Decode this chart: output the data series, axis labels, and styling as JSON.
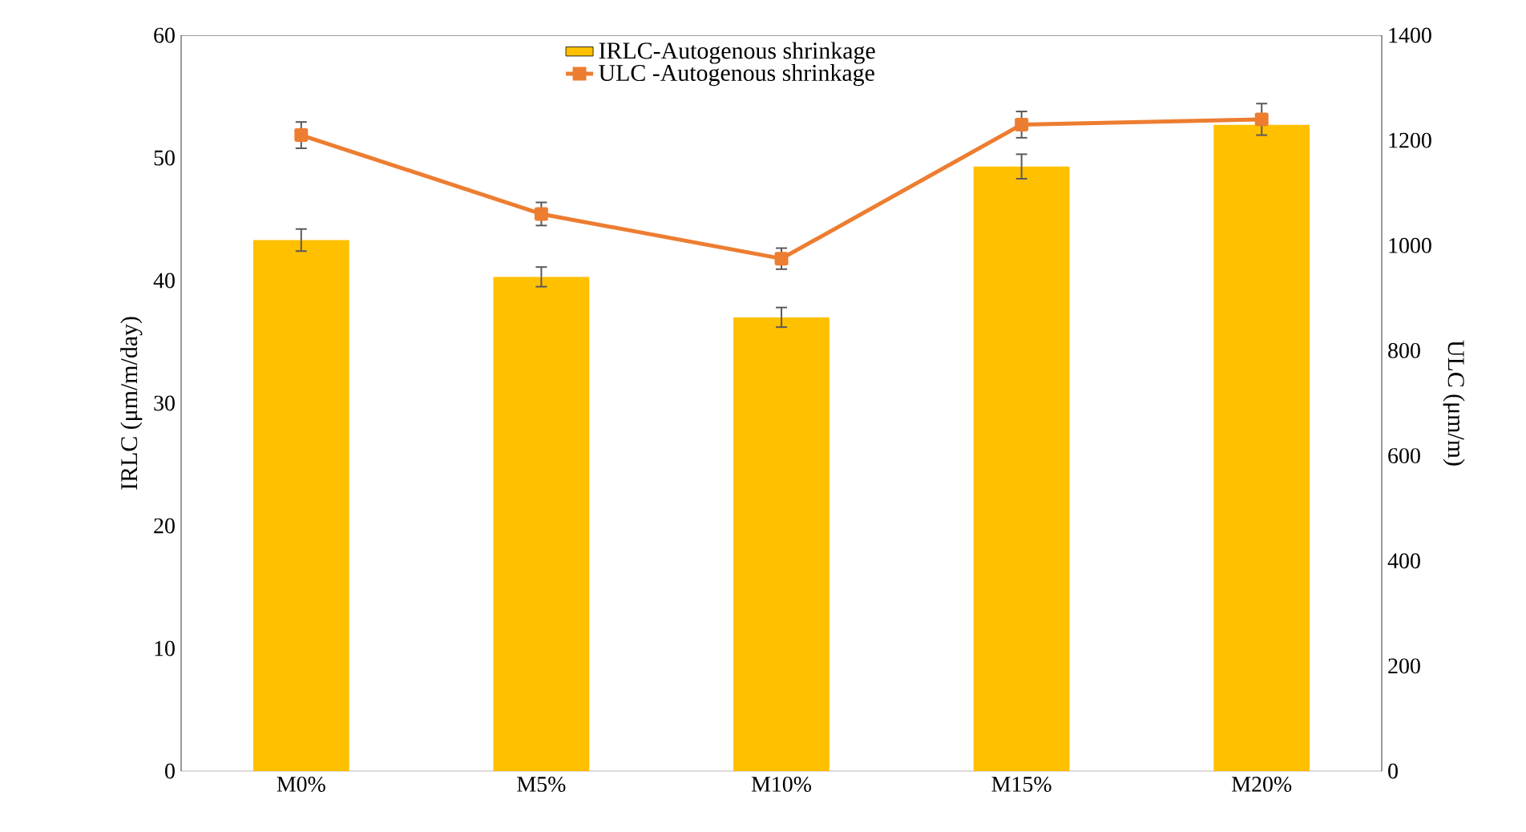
{
  "chart_data": {
    "type": "bar",
    "categories": [
      "M0%",
      "M5%",
      "M10%",
      "M15%",
      "M20%"
    ],
    "ylabel": "IRLC (μm/m/day)",
    "y2label": "ULC (μm/m)",
    "ylim": [
      0,
      60
    ],
    "yticks": [
      0,
      10,
      20,
      30,
      40,
      50,
      60
    ],
    "y2lim": [
      0,
      1400
    ],
    "y2ticks": [
      0,
      200,
      400,
      600,
      800,
      1000,
      1200,
      1400
    ],
    "legend": "top",
    "series": [
      {
        "name": "IRLC-Autogenous shrinkage",
        "color": "#ffc000",
        "values": [
          43.3,
          40.3,
          37.0,
          49.3,
          52.7
        ],
        "errors": [
          0.9,
          0.8,
          0.8,
          1.0,
          null
        ]
      },
      {
        "name": "ULC -Autogenous shrinkage",
        "type": "line",
        "axis": "y2",
        "marker": "square",
        "color": "#ed7d31",
        "values": [
          1210,
          1060,
          975,
          1230,
          1240
        ],
        "errors": [
          25,
          22,
          20,
          25,
          30
        ]
      }
    ]
  }
}
